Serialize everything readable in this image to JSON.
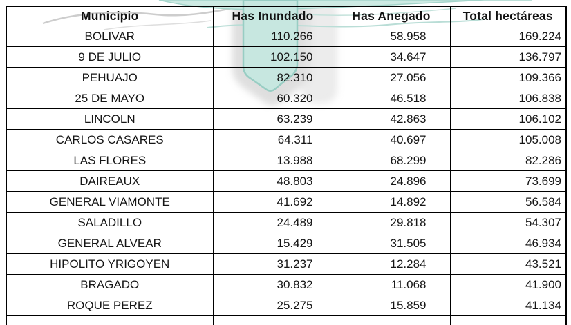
{
  "chart_data": {
    "type": "table",
    "columns": [
      "Municipio",
      "Has Inundado",
      "Has Anegado",
      "Total hectáreas"
    ],
    "rows": [
      [
        "BOLIVAR",
        "110.266",
        "58.958",
        "169.224"
      ],
      [
        "9 DE JULIO",
        "102.150",
        "34.647",
        "136.797"
      ],
      [
        "PEHUAJO",
        "82.310",
        "27.056",
        "109.366"
      ],
      [
        "25 DE MAYO",
        "60.320",
        "46.518",
        "106.838"
      ],
      [
        "LINCOLN",
        "63.239",
        "42.863",
        "106.102"
      ],
      [
        "CARLOS CASARES",
        "64.311",
        "40.697",
        "105.008"
      ],
      [
        "LAS FLORES",
        "13.988",
        "68.299",
        "82.286"
      ],
      [
        "DAIREAUX",
        "48.803",
        "24.896",
        "73.699"
      ],
      [
        "GENERAL VIAMONTE",
        "41.692",
        "14.892",
        "56.584"
      ],
      [
        "SALADILLO",
        "24.489",
        "29.818",
        "54.307"
      ],
      [
        "GENERAL ALVEAR",
        "15.429",
        "31.505",
        "46.934"
      ],
      [
        "HIPOLITO YRIGOYEN",
        "31.237",
        "12.284",
        "43.521"
      ],
      [
        "BRAGADO",
        "30.832",
        "11.068",
        "41.900"
      ],
      [
        "ROQUE PEREZ",
        "25.275",
        "15.859",
        "41.134"
      ]
    ]
  },
  "watermark": {
    "icon": "organization-logo-watermark",
    "teal_fill": "#c7e7e0",
    "teal_stroke": "#98cdc3",
    "teal_band_fill": "#cdeae3",
    "gray_swash": "#cdcdcd",
    "shadow_gray": "#c4c4c4"
  }
}
